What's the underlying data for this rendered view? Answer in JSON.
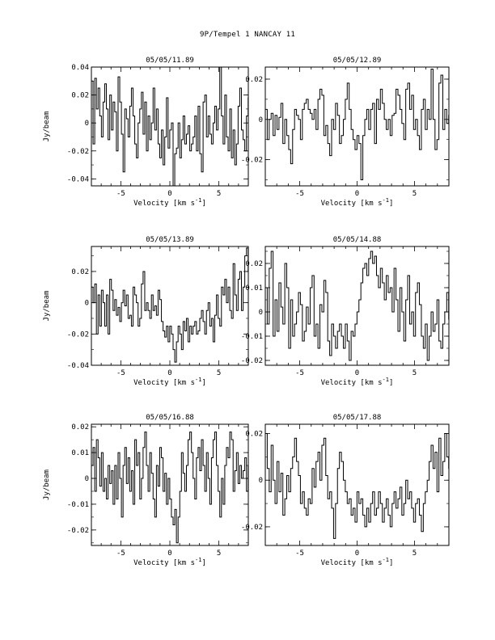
{
  "page": {
    "title": "9P/Tempel 1   NANCAY    11"
  },
  "chart_data": [
    {
      "type": "line",
      "title": "05/05/11.89",
      "xlabel": "Velocity [km s",
      "xlabel_sup": "-1",
      "xlabel_end": "]",
      "ylabel": "Jy/beam",
      "xlim": [
        -8,
        8
      ],
      "ylim": [
        -0.045,
        0.04
      ],
      "xticks": [
        -5,
        0,
        5
      ],
      "xtick_labels": [
        "-5",
        "0",
        "5"
      ],
      "yticks": [
        -0.04,
        -0.02,
        0,
        0.02,
        0.04
      ],
      "ytick_labels": [
        "-0.04",
        "-0.02",
        "0",
        "0.02",
        "0.04"
      ],
      "x_start": -8,
      "x_step": 0.17,
      "values": [
        0.03,
        -0.015,
        0.032,
        0.01,
        0.025,
        0.005,
        -0.01,
        0.015,
        0.028,
        0.01,
        -0.012,
        0.02,
        -0.005,
        0.015,
        0.008,
        -0.02,
        0.033,
        0.015,
        -0.008,
        -0.035,
        0.01,
        0.003,
        -0.01,
        0.012,
        0.025,
        0.005,
        -0.015,
        -0.025,
        0.0,
        0.01,
        0.022,
        -0.008,
        0.015,
        -0.02,
        0.005,
        -0.012,
        0.0,
        0.025,
        -0.005,
        0.01,
        -0.015,
        -0.025,
        -0.005,
        -0.03,
        -0.01,
        0.018,
        -0.018,
        -0.005,
        0.0,
        -0.045,
        -0.022,
        -0.018,
        0.0,
        -0.025,
        -0.012,
        0.005,
        -0.015,
        -0.008,
        -0.002,
        -0.02,
        -0.015,
        -0.01,
        0.005,
        -0.02,
        0.012,
        -0.022,
        -0.035,
        0.015,
        0.02,
        -0.01,
        0.005,
        -0.008,
        -0.015,
        0.0,
        0.012,
        -0.005,
        0.01,
        0.04,
        0.005,
        -0.015,
        0.02,
        -0.01,
        -0.02,
        0.01,
        -0.025,
        -0.005,
        -0.03,
        -0.015,
        0.012,
        0.025,
        -0.005,
        -0.012,
        -0.02,
        0.005,
        0.018,
        0.01
      ]
    },
    {
      "type": "line",
      "title": "05/05/12.89",
      "xlabel": "Velocity [km s",
      "xlabel_sup": "-1",
      "xlabel_end": "]",
      "ylabel": "",
      "xlim": [
        -8,
        8
      ],
      "ylim": [
        -0.033,
        0.026
      ],
      "xticks": [
        -5,
        0,
        5
      ],
      "xtick_labels": [
        "-5",
        "0",
        "5"
      ],
      "yticks": [
        -0.02,
        0,
        0.02
      ],
      "ytick_labels": [
        "-0.02",
        "0",
        "0.02"
      ],
      "x_start": -8,
      "x_step": 0.17,
      "values": [
        0.005,
        -0.01,
        0.0,
        0.003,
        -0.008,
        0.002,
        -0.005,
        0.001,
        0.008,
        -0.012,
        0.0,
        -0.008,
        -0.015,
        -0.022,
        -0.005,
        0.005,
        0.002,
        0.0,
        -0.01,
        0.005,
        0.008,
        0.01,
        0.005,
        0.003,
        0.0,
        0.005,
        -0.005,
        0.01,
        0.015,
        0.012,
        -0.008,
        -0.003,
        -0.012,
        -0.018,
        0.0,
        -0.005,
        0.008,
        0.002,
        -0.012,
        -0.008,
        0.0,
        0.01,
        0.018,
        0.005,
        -0.005,
        -0.01,
        -0.015,
        -0.008,
        -0.012,
        -0.03,
        -0.008,
        0.0,
        0.005,
        -0.005,
        0.005,
        0.008,
        -0.012,
        0.01,
        0.005,
        0.015,
        0.008,
        0.0,
        -0.005,
        0.0,
        -0.008,
        0.002,
        0.003,
        0.015,
        0.012,
        0.005,
        -0.002,
        -0.01,
        0.015,
        0.018,
        0.005,
        0.012,
        -0.005,
        0.0,
        -0.008,
        -0.015,
        0.005,
        0.01,
        -0.005,
        0.005,
        0.0,
        0.025,
        0.0,
        -0.015,
        -0.01,
        0.018,
        0.022,
        -0.005,
        0.005,
        -0.002,
        0.002,
        0.0
      ]
    },
    {
      "type": "line",
      "title": "05/05/13.89",
      "xlabel": "Velocity [km s",
      "xlabel_sup": "-1",
      "xlabel_end": "]",
      "ylabel": "Jy/beam",
      "xlim": [
        -8,
        8
      ],
      "ylim": [
        -0.04,
        0.036
      ],
      "xticks": [
        -5,
        0,
        5
      ],
      "xtick_labels": [
        "-5",
        "0",
        "5"
      ],
      "yticks": [
        -0.04,
        -0.02,
        0,
        0.02
      ],
      "ytick_labels": [
        "-0.04",
        "-0.02",
        "0",
        "0.02"
      ],
      "x_start": -8,
      "x_step": 0.17,
      "values": [
        0.01,
        0.0,
        0.012,
        -0.02,
        0.005,
        -0.015,
        0.008,
        0.0,
        -0.015,
        0.005,
        -0.02,
        0.015,
        0.008,
        -0.005,
        0.002,
        -0.008,
        -0.003,
        -0.012,
        0.0,
        0.008,
        -0.002,
        0.005,
        -0.01,
        -0.008,
        -0.015,
        0.01,
        0.005,
        0.0,
        -0.015,
        -0.01,
        0.012,
        0.02,
        -0.005,
        0.0,
        -0.005,
        -0.01,
        0.005,
        -0.005,
        -0.002,
        -0.008,
        0.008,
        0.002,
        -0.012,
        -0.018,
        -0.022,
        -0.015,
        -0.025,
        -0.015,
        -0.02,
        -0.03,
        -0.038,
        -0.025,
        -0.015,
        -0.02,
        -0.03,
        -0.012,
        -0.018,
        -0.01,
        -0.025,
        -0.015,
        -0.02,
        -0.015,
        -0.012,
        -0.02,
        -0.018,
        -0.01,
        -0.005,
        -0.012,
        -0.02,
        -0.005,
        0.0,
        -0.015,
        -0.01,
        -0.025,
        -0.008,
        0.005,
        -0.01,
        -0.015,
        0.01,
        0.005,
        0.015,
        0.0,
        0.01,
        -0.005,
        -0.01,
        0.025,
        0.005,
        -0.005,
        0.015,
        0.02,
        -0.005,
        0.01,
        0.03,
        0.035,
        0.02,
        0.01
      ]
    },
    {
      "type": "line",
      "title": "05/05/14.88",
      "xlabel": "Velocity [km s",
      "xlabel_sup": "-1",
      "xlabel_end": "]",
      "ylabel": "",
      "xlim": [
        -8,
        8
      ],
      "ylim": [
        -0.022,
        0.027
      ],
      "xticks": [
        -5,
        0,
        5
      ],
      "xtick_labels": [
        "-5",
        "0",
        "5"
      ],
      "yticks": [
        -0.02,
        -0.01,
        0,
        0.01,
        0.02
      ],
      "ytick_labels": [
        "-0.02",
        "-0.01",
        "0",
        "0.01",
        "0.02"
      ],
      "x_start": -8,
      "x_step": 0.17,
      "values": [
        0.01,
        -0.005,
        0.018,
        0.025,
        -0.01,
        0.005,
        -0.008,
        0.012,
        0.002,
        -0.005,
        0.02,
        0.01,
        -0.015,
        0.005,
        -0.01,
        -0.005,
        0.0,
        0.008,
        0.003,
        -0.012,
        -0.008,
        0.002,
        -0.005,
        0.01,
        0.015,
        -0.01,
        -0.005,
        -0.015,
        0.003,
        0.0,
        0.013,
        0.008,
        -0.012,
        -0.018,
        -0.005,
        -0.01,
        -0.015,
        -0.008,
        -0.005,
        -0.01,
        -0.015,
        -0.005,
        -0.012,
        -0.02,
        -0.008,
        -0.01,
        -0.005,
        0.0,
        0.005,
        0.012,
        0.018,
        0.02,
        0.015,
        0.022,
        0.025,
        0.02,
        0.023,
        0.015,
        0.01,
        0.018,
        0.012,
        0.005,
        0.015,
        0.008,
        0.01,
        0.0,
        0.018,
        0.005,
        -0.008,
        0.01,
        0.0,
        -0.012,
        0.005,
        0.015,
        -0.005,
        0.0,
        -0.01,
        0.008,
        0.012,
        0.003,
        -0.01,
        -0.015,
        -0.005,
        -0.02,
        -0.01,
        0.0,
        -0.008,
        -0.005,
        0.005,
        -0.012,
        -0.015,
        -0.005,
        0.0,
        0.008,
        -0.003,
        0.005
      ]
    },
    {
      "type": "line",
      "title": "05/05/16.88",
      "xlabel": "Velocity [km s",
      "xlabel_sup": "-1",
      "xlabel_end": "]",
      "ylabel": "Jy/beam",
      "xlim": [
        -8,
        8
      ],
      "ylim": [
        -0.026,
        0.021
      ],
      "xticks": [
        -5,
        0,
        5
      ],
      "xtick_labels": [
        "-5",
        "0",
        "5"
      ],
      "yticks": [
        -0.02,
        -0.01,
        0,
        0.01,
        0.02
      ],
      "ytick_labels": [
        "-0.02",
        "-0.01",
        "0",
        "0.01",
        "0.02"
      ],
      "x_start": -8,
      "x_step": 0.17,
      "values": [
        0.005,
        0.012,
        -0.005,
        0.015,
        0.008,
        -0.003,
        0.01,
        -0.005,
        0.0,
        -0.008,
        0.005,
        -0.002,
        0.003,
        -0.01,
        0.005,
        -0.008,
        0.01,
        0.0,
        -0.015,
        0.005,
        0.012,
        -0.002,
        0.008,
        -0.005,
        0.003,
        -0.01,
        0.015,
        0.005,
        0.01,
        -0.008,
        0.0,
        0.012,
        0.018,
        0.005,
        -0.005,
        0.01,
        0.002,
        -0.008,
        -0.015,
        0.005,
        -0.003,
        0.012,
        0.008,
        -0.005,
        0.002,
        -0.01,
        0.0,
        -0.008,
        -0.015,
        -0.018,
        -0.012,
        -0.025,
        -0.015,
        -0.005,
        0.01,
        0.002,
        -0.005,
        0.005,
        0.015,
        0.018,
        0.01,
        0.0,
        -0.008,
        0.008,
        0.012,
        0.003,
        0.015,
        0.005,
        -0.005,
        0.01,
        0.0,
        -0.01,
        0.008,
        0.015,
        0.018,
        0.005,
        -0.005,
        -0.015,
        0.0,
        -0.01,
        0.005,
        0.012,
        0.008,
        0.018,
        0.015,
        -0.005,
        0.003,
        0.01,
        -0.002,
        0.005,
        0.0,
        0.003,
        0.008,
        -0.005,
        0.005,
        0.0
      ]
    },
    {
      "type": "line",
      "title": "05/05/17.88",
      "xlabel": "Velocity [km s",
      "xlabel_sup": "-1",
      "xlabel_end": "]",
      "ylabel": "",
      "xlim": [
        -8,
        8
      ],
      "ylim": [
        -0.028,
        0.024
      ],
      "xticks": [
        -5,
        0,
        5
      ],
      "xtick_labels": [
        "-5",
        "0",
        "5"
      ],
      "yticks": [
        -0.02,
        0,
        0.02
      ],
      "ytick_labels": [
        "-0.02",
        "0",
        "0.02"
      ],
      "x_start": -8,
      "x_step": 0.17,
      "values": [
        0.02,
        0.005,
        -0.005,
        0.015,
        0.0,
        -0.01,
        0.008,
        -0.005,
        0.003,
        -0.015,
        -0.008,
        0.002,
        -0.005,
        0.005,
        0.01,
        0.018,
        0.008,
        0.002,
        -0.01,
        -0.005,
        -0.012,
        -0.015,
        -0.008,
        -0.01,
        0.005,
        -0.003,
        0.008,
        0.012,
        0.0,
        0.015,
        0.018,
        0.002,
        -0.008,
        -0.005,
        -0.012,
        -0.025,
        -0.01,
        0.005,
        0.012,
        0.008,
        0.0,
        -0.005,
        -0.01,
        -0.008,
        -0.015,
        -0.012,
        -0.018,
        -0.005,
        -0.01,
        -0.008,
        -0.015,
        -0.02,
        -0.012,
        -0.018,
        -0.01,
        -0.005,
        -0.015,
        -0.012,
        -0.005,
        -0.01,
        -0.018,
        -0.012,
        -0.008,
        -0.015,
        -0.02,
        -0.01,
        -0.005,
        -0.012,
        -0.008,
        -0.003,
        -0.015,
        -0.01,
        0.0,
        -0.008,
        -0.005,
        -0.012,
        -0.018,
        -0.01,
        -0.008,
        -0.015,
        -0.022,
        -0.01,
        -0.005,
        0.0,
        0.008,
        0.015,
        0.005,
        0.012,
        -0.005,
        0.018,
        0.002,
        0.008,
        0.02,
        0.01,
        0.005,
        0.012
      ]
    }
  ]
}
